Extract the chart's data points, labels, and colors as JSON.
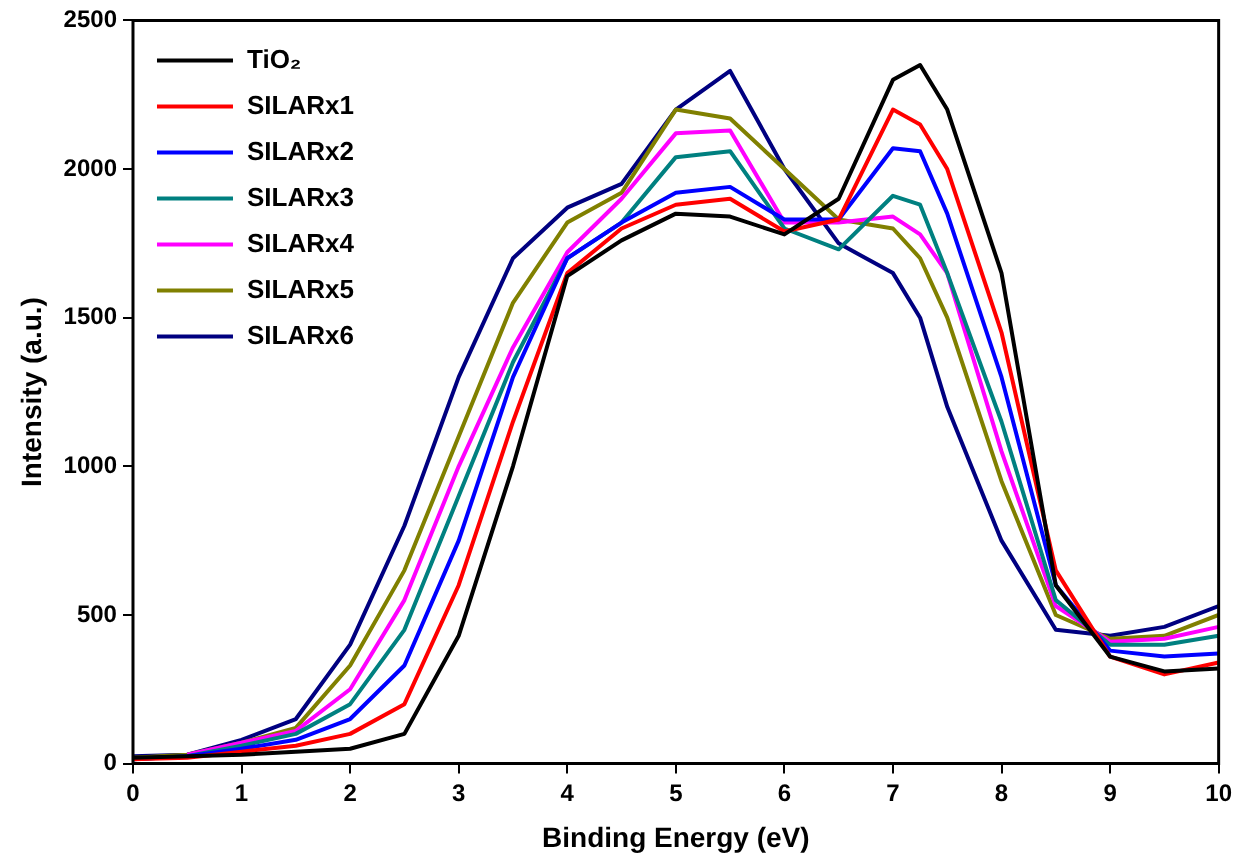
{
  "chart_data": {
    "type": "line",
    "xlabel": "Binding Energy (eV)",
    "ylabel": "Intensity (a.u.)",
    "x": [
      0,
      0.5,
      1,
      1.5,
      2,
      2.5,
      3,
      3.5,
      4,
      4.5,
      5,
      5.5,
      6,
      6.5,
      7,
      7.25,
      7.5,
      8,
      8.5,
      9,
      9.5,
      10
    ],
    "xlim": [
      0,
      10
    ],
    "xticks": [
      0,
      1,
      2,
      3,
      4,
      5,
      6,
      7,
      8,
      9,
      10
    ],
    "ylim": [
      0,
      2500
    ],
    "yticks": [
      0,
      500,
      1000,
      1500,
      2000,
      2500
    ],
    "grid": false,
    "legend": "top left",
    "marker": "none",
    "line_style": "solid",
    "series": [
      {
        "name": "TiO₂",
        "color": "#000000",
        "values": [
          20,
          25,
          30,
          40,
          50,
          100,
          430,
          1000,
          1640,
          1760,
          1850,
          1840,
          1780,
          1900,
          2300,
          2350,
          2200,
          1650,
          600,
          360,
          310,
          320
        ]
      },
      {
        "name": "SILARx1",
        "color": "#ff0000",
        "values": [
          15,
          20,
          40,
          60,
          100,
          200,
          600,
          1150,
          1650,
          1800,
          1880,
          1900,
          1790,
          1830,
          2200,
          2150,
          2000,
          1450,
          650,
          360,
          300,
          340
        ]
      },
      {
        "name": "SILARx2",
        "color": "#0000ff",
        "values": [
          15,
          25,
          50,
          80,
          150,
          330,
          750,
          1300,
          1700,
          1820,
          1920,
          1940,
          1830,
          1830,
          2070,
          2060,
          1850,
          1300,
          600,
          380,
          360,
          370
        ]
      },
      {
        "name": "SILARx3",
        "color": "#008080",
        "values": [
          15,
          25,
          60,
          100,
          200,
          450,
          900,
          1350,
          1700,
          1820,
          2040,
          2060,
          1800,
          1730,
          1910,
          1880,
          1650,
          1150,
          550,
          400,
          400,
          430
        ]
      },
      {
        "name": "SILARx4",
        "color": "#ff00ff",
        "values": [
          null,
          30,
          70,
          110,
          250,
          550,
          1000,
          1400,
          1720,
          1900,
          2120,
          2130,
          1820,
          1820,
          1840,
          1780,
          1650,
          1050,
          530,
          410,
          420,
          460
        ]
      },
      {
        "name": "SILARx5",
        "color": "#808000",
        "values": [
          20,
          30,
          70,
          120,
          330,
          650,
          1100,
          1550,
          1820,
          1920,
          2200,
          2170,
          2000,
          1830,
          1800,
          1700,
          1500,
          950,
          500,
          420,
          430,
          500
        ]
      },
      {
        "name": "SILARx6",
        "color": "#000080",
        "values": [
          25,
          30,
          80,
          150,
          400,
          800,
          1300,
          1700,
          1870,
          1950,
          2200,
          2330,
          2000,
          1750,
          1650,
          1500,
          1200,
          750,
          450,
          430,
          460,
          530
        ]
      }
    ]
  }
}
